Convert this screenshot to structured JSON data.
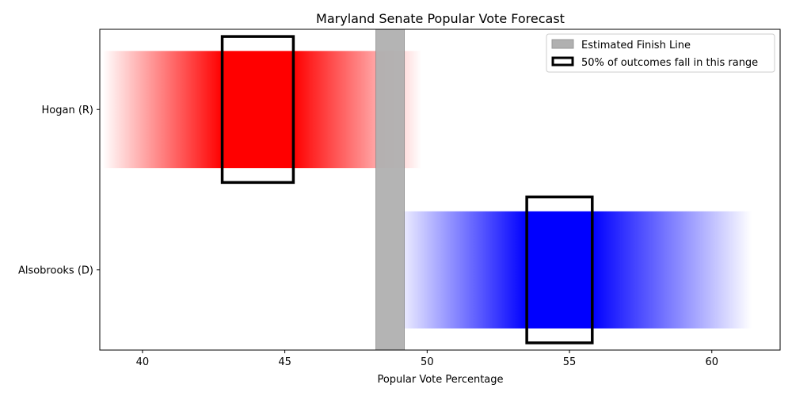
{
  "chart_data": {
    "type": "bar",
    "title": "Maryland Senate Popular Vote Forecast",
    "xlabel": "Popular Vote Percentage",
    "ylabel": "",
    "xlim": [
      38.5,
      62.4
    ],
    "xticks": [
      40,
      45,
      50,
      55,
      60
    ],
    "grid": false,
    "legend_position": "top-right",
    "legend": {
      "finish_line": "Estimated Finish Line",
      "range": "50% of outcomes fall in this range"
    },
    "finish_line": {
      "from": 48.2,
      "to": 49.2,
      "color": "#b0b0b0"
    },
    "series": [
      {
        "name": "Hogan (R)",
        "color": "#ff0000",
        "gradient_range": [
          38.6,
          49.8
        ],
        "solid_range": [
          42.8,
          45.3
        ],
        "range_50": [
          42.8,
          45.3
        ]
      },
      {
        "name": "Alsobrooks (D)",
        "color": "#0000ff",
        "gradient_range": [
          48.8,
          61.4
        ],
        "solid_range": [
          53.5,
          55.8
        ],
        "range_50": [
          53.5,
          55.8
        ]
      }
    ]
  }
}
